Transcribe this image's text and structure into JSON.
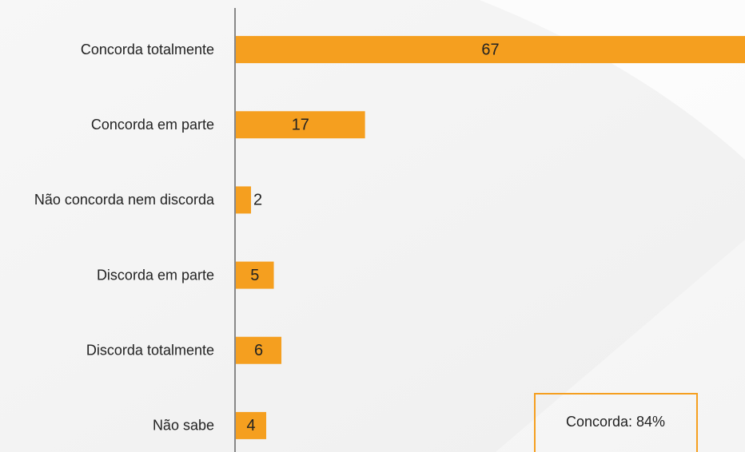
{
  "chart_data": {
    "type": "bar",
    "orientation": "horizontal",
    "categories": [
      "Concorda totalmente",
      "Concorda em parte",
      "Não concorda nem discorda",
      "Discorda em parte",
      "Discorda totalmente",
      "Não sabe"
    ],
    "values": [
      67,
      17,
      2,
      5,
      6,
      4
    ],
    "color": "#f59f1f",
    "xlim": [
      0,
      67
    ],
    "annotation": "Concorda: 84%"
  }
}
